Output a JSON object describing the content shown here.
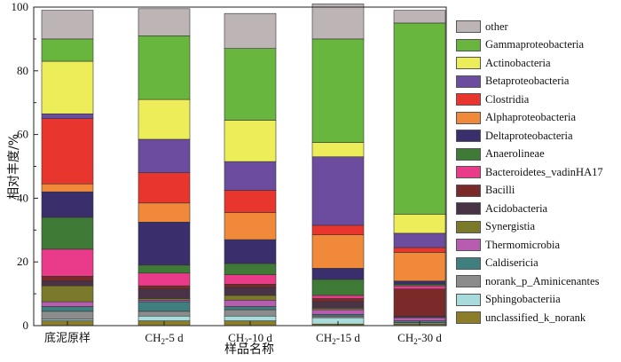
{
  "chart_data": {
    "type": "bar",
    "stacked": true,
    "title": "",
    "xlabel": "样品名称",
    "ylabel": "相对丰度/%",
    "ylim": [
      0,
      100
    ],
    "yticks": [
      "0",
      "20",
      "40",
      "60",
      "80",
      "100"
    ],
    "grid": false,
    "legend_position": "right",
    "categories": [
      "底泥原样",
      "CH2-5 d",
      "CH2-10 d",
      "CH2-15 d",
      "CH2-30 d"
    ],
    "category_labels": [
      {
        "main": "底泥原样",
        "sub": "",
        "suffix": ""
      },
      {
        "main": "CH",
        "sub": "2",
        "suffix": "-5 d"
      },
      {
        "main": "CH",
        "sub": "2",
        "suffix": "-10 d"
      },
      {
        "main": "CH",
        "sub": "2",
        "suffix": "-15 d"
      },
      {
        "main": "CH",
        "sub": "2",
        "suffix": "-30 d"
      }
    ],
    "series": [
      {
        "name": "unclassified_k_norank",
        "color": "#8b7d2a",
        "values": [
          1.5,
          1.5,
          1.5,
          0.5,
          0.5
        ]
      },
      {
        "name": "Sphingobacteriia",
        "color": "#a8dcdc",
        "values": [
          0.5,
          1.5,
          1.5,
          2.0,
          0.0
        ]
      },
      {
        "name": "norank_p_Aminicenantes",
        "color": "#8c8c8c",
        "values": [
          2.5,
          1.5,
          2.0,
          0.5,
          0.5
        ]
      },
      {
        "name": "Caldisericia",
        "color": "#3f7f7f",
        "values": [
          1.5,
          3.0,
          1.0,
          0.5,
          0.5
        ]
      },
      {
        "name": "Thermomicrobia",
        "color": "#b85cb0",
        "values": [
          1.5,
          0.5,
          2.0,
          1.5,
          1.0
        ]
      },
      {
        "name": "Synergistia",
        "color": "#7a7a2a",
        "values": [
          5.0,
          0.5,
          1.5,
          0.5,
          0.0
        ]
      },
      {
        "name": "Acidobacteria",
        "color": "#4a3347",
        "values": [
          1.5,
          3.0,
          2.5,
          2.0,
          0.5
        ]
      },
      {
        "name": "Bacilli",
        "color": "#7b2a2a",
        "values": [
          1.5,
          1.0,
          1.0,
          1.0,
          8.5
        ]
      },
      {
        "name": "Bacteroidetes_vadinHA17",
        "color": "#ea3b8a",
        "values": [
          8.5,
          4.0,
          3.0,
          1.0,
          1.0
        ]
      },
      {
        "name": "Anaerolineae",
        "color": "#3f7a37",
        "values": [
          10.0,
          2.5,
          3.5,
          5.0,
          0.5
        ]
      },
      {
        "name": "Deltaproteobacteria",
        "color": "#3b2e6c",
        "values": [
          8.0,
          13.5,
          7.5,
          3.5,
          1.0
        ]
      },
      {
        "name": "Alphaproteobacteria",
        "color": "#f0893a",
        "values": [
          2.5,
          6.0,
          8.5,
          10.5,
          9.0
        ]
      },
      {
        "name": "Clostridia",
        "color": "#e8352d",
        "values": [
          20.5,
          9.5,
          7.0,
          3.0,
          1.5
        ]
      },
      {
        "name": "Betaproteobacteria",
        "color": "#6b4c9e",
        "values": [
          1.5,
          10.5,
          9.0,
          21.5,
          4.5
        ]
      },
      {
        "name": "Actinobacteria",
        "color": "#eded5a",
        "values": [
          16.5,
          12.5,
          13.0,
          4.5,
          6.0
        ]
      },
      {
        "name": "Gammaproteobacteria",
        "color": "#69b63e",
        "values": [
          7.0,
          20.0,
          22.5,
          32.5,
          60.0
        ]
      },
      {
        "name": "other",
        "color": "#bdb5b5",
        "values": [
          9.0,
          8.5,
          11.0,
          11.0,
          4.0
        ]
      }
    ]
  }
}
